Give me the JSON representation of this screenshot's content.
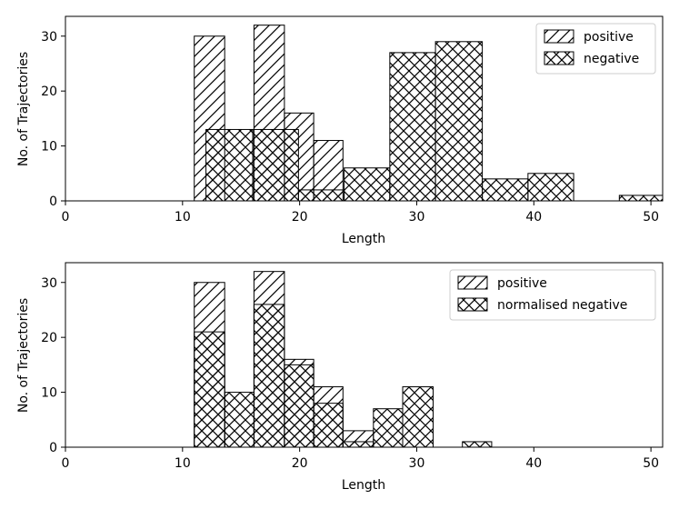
{
  "chart_data": [
    {
      "type": "bar",
      "histogram": true,
      "xlabel": "Length",
      "ylabel": "No. of Trajectories",
      "xlim": [
        0,
        51
      ],
      "ylim": [
        0,
        33.6
      ],
      "xticks": [
        "0",
        "10",
        "20",
        "30",
        "40",
        "50"
      ],
      "yticks": [
        "0",
        "10",
        "20",
        "30"
      ],
      "legend_position": "upper right",
      "series": [
        {
          "name": "positive",
          "hatch": "diagonal",
          "bins": [
            {
              "x0": 11.0,
              "x1": 13.6,
              "value": 30
            },
            {
              "x0": 16.1,
              "x1": 18.7,
              "value": 32
            },
            {
              "x0": 18.7,
              "x1": 21.2,
              "value": 16
            },
            {
              "x0": 21.2,
              "x1": 23.7,
              "value": 11
            }
          ]
        },
        {
          "name": "negative",
          "hatch": "crosshatch",
          "bins": [
            {
              "x0": 12.0,
              "x1": 16.0,
              "value": 13
            },
            {
              "x0": 16.0,
              "x1": 19.9,
              "value": 13
            },
            {
              "x0": 19.9,
              "x1": 23.8,
              "value": 2
            },
            {
              "x0": 23.8,
              "x1": 27.7,
              "value": 6
            },
            {
              "x0": 27.7,
              "x1": 31.6,
              "value": 27
            },
            {
              "x0": 31.6,
              "x1": 35.6,
              "value": 29
            },
            {
              "x0": 35.6,
              "x1": 39.5,
              "value": 4
            },
            {
              "x0": 39.5,
              "x1": 43.4,
              "value": 5
            },
            {
              "x0": 43.4,
              "x1": 47.3,
              "value": 0
            },
            {
              "x0": 47.3,
              "x1": 51.2,
              "value": 1
            }
          ]
        }
      ]
    },
    {
      "type": "bar",
      "histogram": true,
      "xlabel": "Length",
      "ylabel": "No. of Trajectories",
      "xlim": [
        0,
        51
      ],
      "ylim": [
        0,
        33.6
      ],
      "xticks": [
        "0",
        "10",
        "20",
        "30",
        "40",
        "50"
      ],
      "yticks": [
        "0",
        "10",
        "20",
        "30"
      ],
      "legend_position": "upper right",
      "series": [
        {
          "name": "positive",
          "hatch": "diagonal",
          "bins": [
            {
              "x0": 11.0,
              "x1": 13.6,
              "value": 30
            },
            {
              "x0": 16.1,
              "x1": 18.7,
              "value": 32
            },
            {
              "x0": 18.7,
              "x1": 21.2,
              "value": 16
            },
            {
              "x0": 21.2,
              "x1": 23.7,
              "value": 11
            },
            {
              "x0": 23.7,
              "x1": 26.3,
              "value": 3
            }
          ]
        },
        {
          "name": "normalised negative",
          "hatch": "crosshatch",
          "bins": [
            {
              "x0": 11.0,
              "x1": 13.6,
              "value": 21
            },
            {
              "x0": 13.6,
              "x1": 16.1,
              "value": 10
            },
            {
              "x0": 16.1,
              "x1": 18.7,
              "value": 26
            },
            {
              "x0": 18.7,
              "x1": 21.2,
              "value": 15
            },
            {
              "x0": 21.2,
              "x1": 23.7,
              "value": 8
            },
            {
              "x0": 23.7,
              "x1": 26.3,
              "value": 1
            },
            {
              "x0": 26.3,
              "x1": 28.8,
              "value": 7
            },
            {
              "x0": 28.8,
              "x1": 31.4,
              "value": 11
            },
            {
              "x0": 31.4,
              "x1": 33.9,
              "value": 0
            },
            {
              "x0": 33.9,
              "x1": 36.4,
              "value": 1
            }
          ]
        }
      ]
    }
  ]
}
